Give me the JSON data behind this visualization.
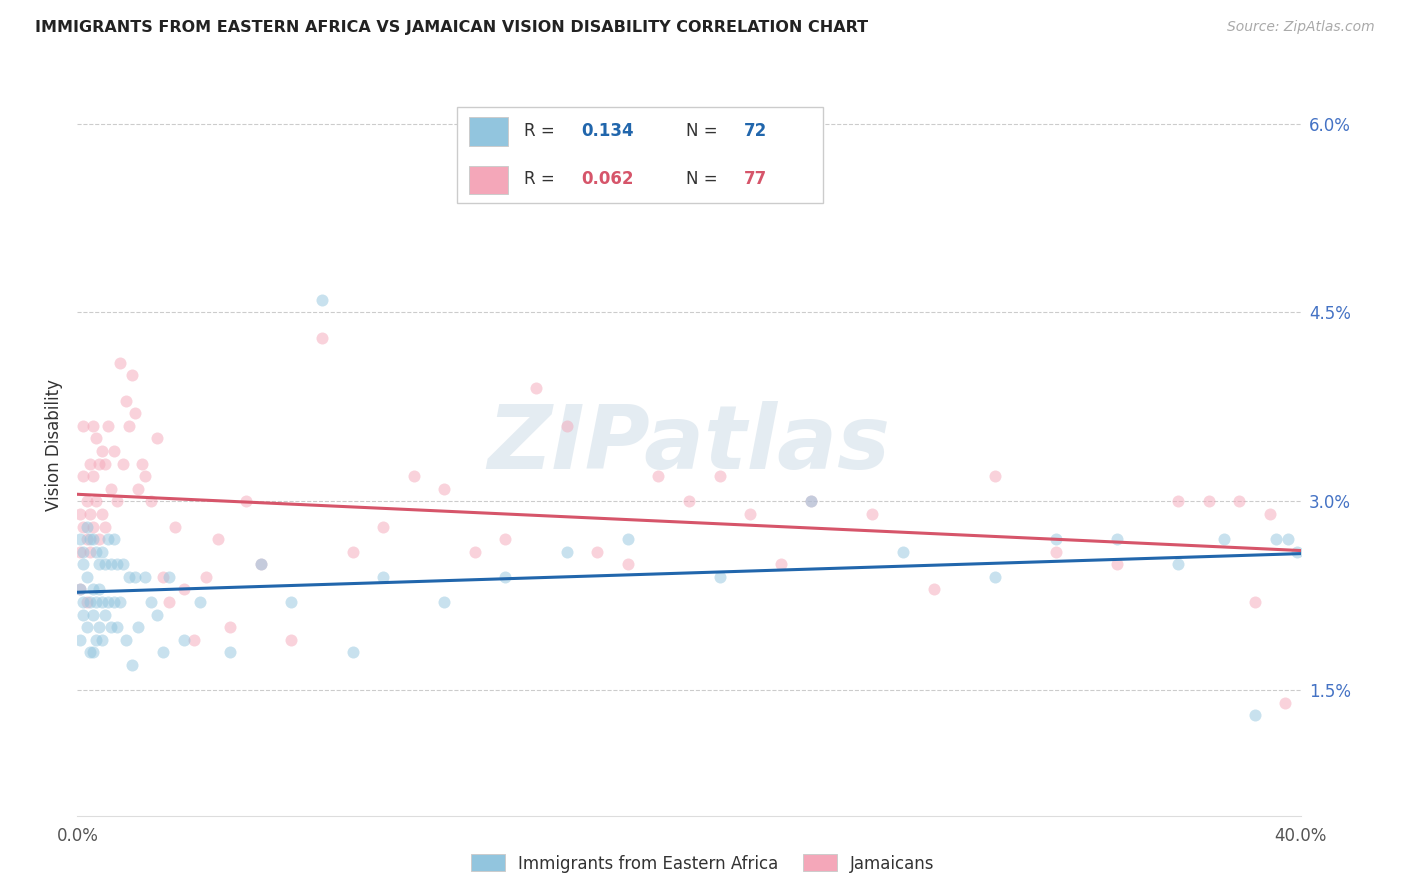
{
  "title": "IMMIGRANTS FROM EASTERN AFRICA VS JAMAICAN VISION DISABILITY CORRELATION CHART",
  "source": "Source: ZipAtlas.com",
  "ylabel": "Vision Disability",
  "xmin": 0.0,
  "xmax": 0.4,
  "ymin": 0.005,
  "ymax": 0.064,
  "yticks": [
    0.015,
    0.03,
    0.045,
    0.06
  ],
  "ytick_labels": [
    "1.5%",
    "3.0%",
    "4.5%",
    "6.0%"
  ],
  "xticks": [
    0.0,
    0.08,
    0.16,
    0.24,
    0.32,
    0.4
  ],
  "blue_R": 0.134,
  "blue_N": 72,
  "pink_R": 0.062,
  "pink_N": 77,
  "blue_label": "Immigrants from Eastern Africa",
  "pink_label": "Jamaicans",
  "blue_color": "#92c5de",
  "pink_color": "#f4a7b9",
  "blue_line_color": "#2166ac",
  "pink_line_color": "#d6556a",
  "marker_size": 75,
  "marker_alpha": 0.5,
  "watermark": "ZIPatlas",
  "blue_scatter_x": [
    0.001,
    0.001,
    0.001,
    0.002,
    0.002,
    0.002,
    0.002,
    0.003,
    0.003,
    0.003,
    0.004,
    0.004,
    0.004,
    0.005,
    0.005,
    0.005,
    0.005,
    0.006,
    0.006,
    0.006,
    0.007,
    0.007,
    0.007,
    0.008,
    0.008,
    0.008,
    0.009,
    0.009,
    0.01,
    0.01,
    0.011,
    0.011,
    0.012,
    0.012,
    0.013,
    0.013,
    0.014,
    0.015,
    0.016,
    0.017,
    0.018,
    0.019,
    0.02,
    0.022,
    0.024,
    0.026,
    0.028,
    0.03,
    0.035,
    0.04,
    0.05,
    0.06,
    0.07,
    0.08,
    0.09,
    0.1,
    0.12,
    0.14,
    0.16,
    0.18,
    0.21,
    0.24,
    0.27,
    0.3,
    0.32,
    0.34,
    0.36,
    0.375,
    0.385,
    0.392,
    0.396,
    0.399
  ],
  "blue_scatter_y": [
    0.027,
    0.023,
    0.019,
    0.026,
    0.022,
    0.025,
    0.021,
    0.028,
    0.024,
    0.02,
    0.027,
    0.022,
    0.018,
    0.027,
    0.023,
    0.021,
    0.018,
    0.026,
    0.022,
    0.019,
    0.025,
    0.023,
    0.02,
    0.026,
    0.022,
    0.019,
    0.025,
    0.021,
    0.027,
    0.022,
    0.025,
    0.02,
    0.027,
    0.022,
    0.025,
    0.02,
    0.022,
    0.025,
    0.019,
    0.024,
    0.017,
    0.024,
    0.02,
    0.024,
    0.022,
    0.021,
    0.018,
    0.024,
    0.019,
    0.022,
    0.018,
    0.025,
    0.022,
    0.046,
    0.018,
    0.024,
    0.022,
    0.024,
    0.026,
    0.027,
    0.024,
    0.03,
    0.026,
    0.024,
    0.027,
    0.027,
    0.025,
    0.027,
    0.013,
    0.027,
    0.027,
    0.026
  ],
  "pink_scatter_x": [
    0.001,
    0.001,
    0.001,
    0.002,
    0.002,
    0.002,
    0.003,
    0.003,
    0.003,
    0.004,
    0.004,
    0.004,
    0.005,
    0.005,
    0.005,
    0.006,
    0.006,
    0.007,
    0.007,
    0.008,
    0.008,
    0.009,
    0.009,
    0.01,
    0.011,
    0.012,
    0.013,
    0.014,
    0.015,
    0.016,
    0.017,
    0.018,
    0.019,
    0.02,
    0.021,
    0.022,
    0.024,
    0.026,
    0.028,
    0.03,
    0.032,
    0.035,
    0.038,
    0.042,
    0.046,
    0.05,
    0.055,
    0.06,
    0.07,
    0.08,
    0.09,
    0.1,
    0.11,
    0.12,
    0.13,
    0.14,
    0.15,
    0.16,
    0.17,
    0.18,
    0.19,
    0.2,
    0.21,
    0.22,
    0.23,
    0.24,
    0.26,
    0.28,
    0.3,
    0.32,
    0.34,
    0.36,
    0.37,
    0.38,
    0.385,
    0.39,
    0.395
  ],
  "pink_scatter_y": [
    0.029,
    0.026,
    0.023,
    0.032,
    0.028,
    0.036,
    0.03,
    0.027,
    0.022,
    0.033,
    0.029,
    0.026,
    0.036,
    0.032,
    0.028,
    0.035,
    0.03,
    0.033,
    0.027,
    0.034,
    0.029,
    0.033,
    0.028,
    0.036,
    0.031,
    0.034,
    0.03,
    0.041,
    0.033,
    0.038,
    0.036,
    0.04,
    0.037,
    0.031,
    0.033,
    0.032,
    0.03,
    0.035,
    0.024,
    0.022,
    0.028,
    0.023,
    0.019,
    0.024,
    0.027,
    0.02,
    0.03,
    0.025,
    0.019,
    0.043,
    0.026,
    0.028,
    0.032,
    0.031,
    0.026,
    0.027,
    0.039,
    0.036,
    0.026,
    0.025,
    0.032,
    0.03,
    0.032,
    0.029,
    0.025,
    0.03,
    0.029,
    0.023,
    0.032,
    0.026,
    0.025,
    0.03,
    0.03,
    0.03,
    0.022,
    0.029,
    0.014
  ]
}
